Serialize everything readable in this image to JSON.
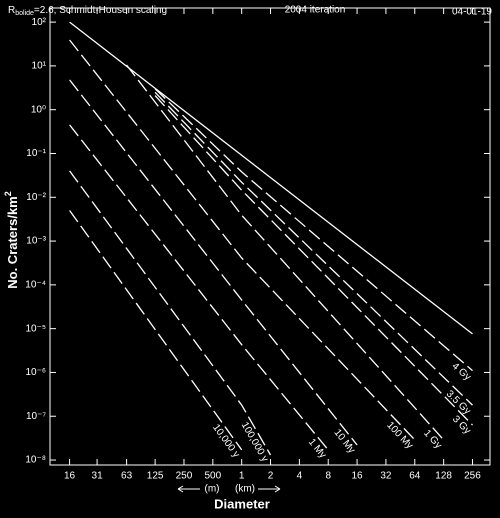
{
  "chart_data": {
    "type": "line",
    "title": "R",
    "title_sub": "bolide",
    "title_rest": "=2.6, Schmidt-Housen scaling",
    "subtitle": "2004 iteration",
    "date": "04-01-19",
    "xlabel": "Diameter",
    "x_units": [
      "(m)",
      "(km)"
    ],
    "ylabel": "No. Craters/km",
    "ylabel_sup": "2",
    "xscale": "log",
    "yscale": "log",
    "xlim": [
      10,
      390000
    ],
    "ylim": [
      7.7e-09,
      210
    ],
    "xticks": [
      16,
      31,
      63,
      125,
      250,
      500,
      {
        "value": 1000,
        "label": "1"
      },
      {
        "value": 2000,
        "label": "2"
      },
      {
        "value": 4000,
        "label": "4"
      },
      {
        "value": 8000,
        "label": "8"
      },
      {
        "value": 16000,
        "label": "16"
      },
      {
        "value": 32000,
        "label": "32"
      },
      {
        "value": 64000,
        "label": "64"
      },
      {
        "value": 128000,
        "label": "128"
      },
      {
        "value": 256000,
        "label": "256"
      }
    ],
    "yticks": [
      {
        "value": 100,
        "label": "10²"
      },
      {
        "value": 10,
        "label": "10¹"
      },
      {
        "value": 1,
        "label": "10⁰"
      },
      {
        "value": 0.1,
        "label": "10⁻¹"
      },
      {
        "value": 0.01,
        "label": "10⁻²"
      },
      {
        "value": 0.001,
        "label": "10⁻³"
      },
      {
        "value": 0.0001,
        "label": "10⁻⁴"
      },
      {
        "value": 1e-05,
        "label": "10⁻⁵"
      },
      {
        "value": 1e-06,
        "label": "10⁻⁶"
      },
      {
        "value": 1e-07,
        "label": "10⁻⁷"
      },
      {
        "value": 1e-08,
        "label": "10⁻⁸"
      }
    ],
    "series": [
      {
        "color": "#ffffff",
        "dashed": false,
        "x": [
          16,
          256000
        ],
        "values": [
          100,
          7.6e-06
        ]
      },
      {
        "name": "10,000 y",
        "color": "#ffffff",
        "dashed": true,
        "x": [
          16,
          1000
        ],
        "values": [
          0.005,
          1.7e-08
        ]
      },
      {
        "name": "100,000 y",
        "color": "#ffffff",
        "dashed": true,
        "x": [
          16,
          1000,
          2000
        ],
        "values": [
          0.04,
          1.8e-07,
          1.3e-08
        ]
      },
      {
        "name": "1 My",
        "color": "#ffffff",
        "dashed": true,
        "x": [
          16,
          1000,
          8000
        ],
        "values": [
          0.45,
          4.3e-06,
          1.7e-08
        ]
      },
      {
        "name": "10 My",
        "color": "#ffffff",
        "dashed": true,
        "x": [
          16,
          1000,
          16000
        ],
        "values": [
          4.8,
          4.5e-05,
          2.2e-08
        ]
      },
      {
        "name": "100 My",
        "color": "#ffffff",
        "dashed": true,
        "x": [
          16,
          1000,
          64000
        ],
        "values": [
          39,
          0.00041,
          2.9e-08
        ]
      },
      {
        "name": "1 Gy",
        "color": "#ffffff",
        "dashed": true,
        "x": [
          63,
          1000,
          128000
        ],
        "values": [
          10.5,
          0.0039,
          2.9e-08
        ]
      },
      {
        "name": "3 Gy",
        "color": "#ffffff",
        "dashed": true,
        "x": [
          125,
          1000,
          256000
        ],
        "values": [
          2.1,
          0.0145,
          6.3e-08
        ]
      },
      {
        "name": "3.5 Gy",
        "color": "#ffffff",
        "dashed": true,
        "x": [
          125,
          1000,
          256000
        ],
        "values": [
          2.5,
          0.022,
          1.8e-07
        ]
      },
      {
        "name": "4 Gy",
        "color": "#ffffff",
        "dashed": true,
        "x": [
          125,
          1000,
          256000
        ],
        "values": [
          3,
          0.038,
          1.1e-06
        ]
      }
    ]
  }
}
